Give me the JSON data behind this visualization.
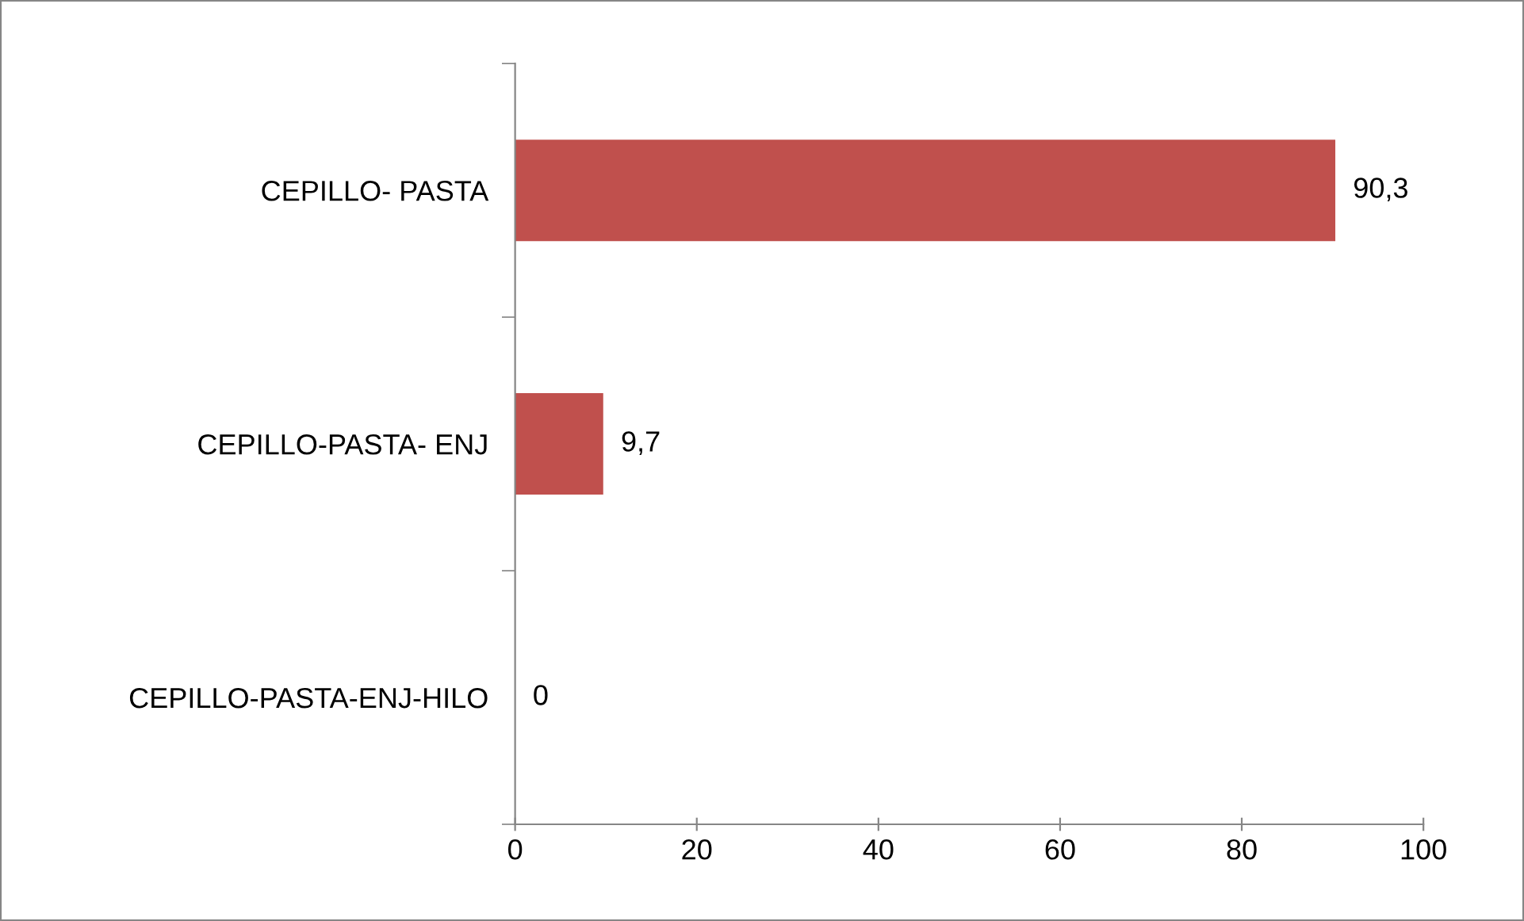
{
  "chart_data": {
    "type": "bar",
    "orientation": "horizontal",
    "categories": [
      "CEPILLO- PASTA",
      "CEPILLO-PASTA- ENJ",
      "CEPILLO-PASTA-ENJ-HILO"
    ],
    "values": [
      90.3,
      9.7,
      0
    ],
    "value_labels": [
      "90,3",
      "9,7",
      "0"
    ],
    "color": "#c0504d",
    "xlim": [
      0,
      100
    ],
    "xticks": [
      0,
      20,
      40,
      60,
      80,
      100
    ],
    "grid": false,
    "legend": false
  }
}
